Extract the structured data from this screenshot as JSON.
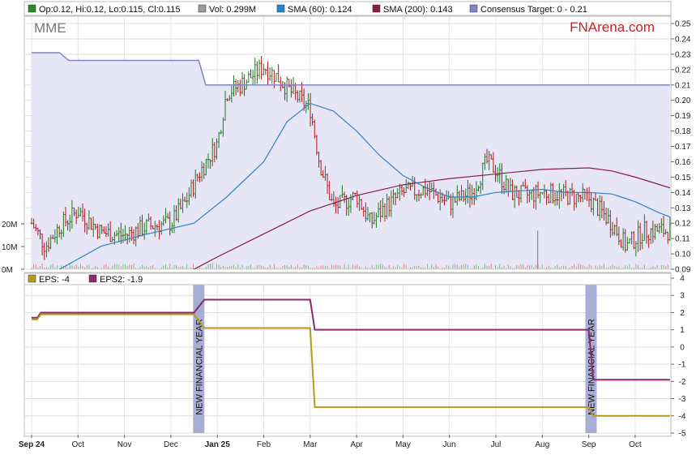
{
  "chart_data": [
    {
      "type": "candlestick",
      "ticker": "MME",
      "watermark": "FNArena.com",
      "legend": [
        {
          "label": "Op:0.12, Hi:0.12, Lo:0.115, Cl:0.115",
          "color": "#2a8a2a"
        },
        {
          "label": "Vol: 0.299M",
          "color": "#9a9a9a"
        },
        {
          "label": "SMA (60): 0.124",
          "color": "#2c84c6"
        },
        {
          "label": "SMA (200): 0.143",
          "color": "#8a1c45"
        },
        {
          "label": "Consensus Target: 0 - 0.21",
          "color": "#7f86c4"
        }
      ],
      "ylim": [
        0.09,
        0.25
      ],
      "y_ticks": [
        "0.09",
        "0.10",
        "0.11",
        "0.12",
        "0.13",
        "0.14",
        "0.15",
        "0.16",
        "0.17",
        "0.18",
        "0.19",
        "0.20",
        "0.21",
        "0.22",
        "0.23",
        "0.24",
        "0.25"
      ],
      "volume_ticks": [
        "0M",
        "10M",
        "20M"
      ],
      "x_ticks": [
        "Sep 24",
        "Oct",
        "Nov",
        "Dec",
        "Jan 25",
        "Feb",
        "Mar",
        "Apr",
        "May",
        "Jun",
        "Jul",
        "Aug",
        "Sep",
        "Oct"
      ],
      "consensus_target": [
        {
          "x": 0,
          "y": 0.231
        },
        {
          "x": 0.6,
          "y": 0.231
        },
        {
          "x": 0.8,
          "y": 0.226
        },
        {
          "x": 3.6,
          "y": 0.226
        },
        {
          "x": 3.75,
          "y": 0.21
        },
        {
          "x": 13.75,
          "y": 0.21
        }
      ],
      "sma200": [
        {
          "x": 0,
          "y": 0.02
        },
        {
          "x": 1,
          "y": 0.04
        },
        {
          "x": 2,
          "y": 0.062
        },
        {
          "x": 3,
          "y": 0.082
        },
        {
          "x": 4,
          "y": 0.098
        },
        {
          "x": 5,
          "y": 0.113
        },
        {
          "x": 6,
          "y": 0.128
        },
        {
          "x": 7,
          "y": 0.138
        },
        {
          "x": 8,
          "y": 0.145
        },
        {
          "x": 9,
          "y": 0.149
        },
        {
          "x": 10,
          "y": 0.152
        },
        {
          "x": 11,
          "y": 0.155
        },
        {
          "x": 12,
          "y": 0.156
        },
        {
          "x": 12.5,
          "y": 0.154
        },
        {
          "x": 13,
          "y": 0.15
        },
        {
          "x": 13.75,
          "y": 0.143
        }
      ],
      "sma60": [
        {
          "x": 0.6,
          "y": 0.09
        },
        {
          "x": 1.5,
          "y": 0.105
        },
        {
          "x": 2.5,
          "y": 0.113
        },
        {
          "x": 3.5,
          "y": 0.12
        },
        {
          "x": 4.2,
          "y": 0.137
        },
        {
          "x": 5,
          "y": 0.16
        },
        {
          "x": 5.5,
          "y": 0.186
        },
        {
          "x": 6,
          "y": 0.198
        },
        {
          "x": 6.5,
          "y": 0.193
        },
        {
          "x": 7,
          "y": 0.18
        },
        {
          "x": 7.5,
          "y": 0.164
        },
        {
          "x": 8,
          "y": 0.151
        },
        {
          "x": 8.5,
          "y": 0.143
        },
        {
          "x": 9,
          "y": 0.137
        },
        {
          "x": 9.5,
          "y": 0.137
        },
        {
          "x": 10,
          "y": 0.14
        },
        {
          "x": 10.5,
          "y": 0.141
        },
        {
          "x": 11,
          "y": 0.142
        },
        {
          "x": 11.5,
          "y": 0.14
        },
        {
          "x": 12,
          "y": 0.14
        },
        {
          "x": 12.5,
          "y": 0.139
        },
        {
          "x": 13,
          "y": 0.134
        },
        {
          "x": 13.5,
          "y": 0.127
        },
        {
          "x": 13.75,
          "y": 0.124
        }
      ],
      "price_close": [
        {
          "x": 0,
          "y": 0.12
        },
        {
          "x": 0.3,
          "y": 0.105
        },
        {
          "x": 0.6,
          "y": 0.118
        },
        {
          "x": 1,
          "y": 0.128
        },
        {
          "x": 1.5,
          "y": 0.114
        },
        {
          "x": 2,
          "y": 0.112
        },
        {
          "x": 2.5,
          "y": 0.118
        },
        {
          "x": 3,
          "y": 0.12
        },
        {
          "x": 3.3,
          "y": 0.133
        },
        {
          "x": 3.6,
          "y": 0.152
        },
        {
          "x": 4,
          "y": 0.172
        },
        {
          "x": 4.2,
          "y": 0.205
        },
        {
          "x": 4.5,
          "y": 0.21
        },
        {
          "x": 5,
          "y": 0.222
        },
        {
          "x": 5.3,
          "y": 0.215
        },
        {
          "x": 5.6,
          "y": 0.205
        },
        {
          "x": 6,
          "y": 0.195
        },
        {
          "x": 6.2,
          "y": 0.16
        },
        {
          "x": 6.5,
          "y": 0.13
        },
        {
          "x": 7,
          "y": 0.138
        },
        {
          "x": 7.3,
          "y": 0.12
        },
        {
          "x": 7.6,
          "y": 0.13
        },
        {
          "x": 8,
          "y": 0.14
        },
        {
          "x": 8.5,
          "y": 0.142
        },
        {
          "x": 9,
          "y": 0.133
        },
        {
          "x": 9.5,
          "y": 0.14
        },
        {
          "x": 9.8,
          "y": 0.16
        },
        {
          "x": 10,
          "y": 0.155
        },
        {
          "x": 10.3,
          "y": 0.14
        },
        {
          "x": 10.7,
          "y": 0.138
        },
        {
          "x": 11,
          "y": 0.14
        },
        {
          "x": 11.5,
          "y": 0.138
        },
        {
          "x": 12,
          "y": 0.136
        },
        {
          "x": 12.5,
          "y": 0.12
        },
        {
          "x": 12.8,
          "y": 0.105
        },
        {
          "x": 13.2,
          "y": 0.115
        },
        {
          "x": 13.75,
          "y": 0.115
        }
      ],
      "volume_spikes": [
        {
          "x": 10.9,
          "v": 17
        }
      ]
    },
    {
      "type": "line",
      "legend": [
        {
          "label": "EPS: -4",
          "color": "#b89a1a"
        },
        {
          "label": "EPS2: -1.9",
          "color": "#8a2a6a"
        }
      ],
      "ylim": [
        -5,
        4
      ],
      "y_ticks": [
        "-5",
        "-4",
        "-3",
        "-2",
        "-1",
        "0",
        "1",
        "2",
        "3",
        "4"
      ],
      "annotations": [
        {
          "text": "NEW FINANCIAL YEAR",
          "x": 3.6
        },
        {
          "text": "NEW FINANCIAL YEAR",
          "x": 12.05
        }
      ],
      "series": [
        {
          "name": "EPS",
          "color": "#b89a1a",
          "points": [
            {
              "x": 0,
              "y": 1.6
            },
            {
              "x": 0.12,
              "y": 1.6
            },
            {
              "x": 0.2,
              "y": 1.9
            },
            {
              "x": 3.5,
              "y": 1.9
            },
            {
              "x": 3.72,
              "y": 1.1
            },
            {
              "x": 6,
              "y": 1.1
            },
            {
              "x": 6.1,
              "y": -3.5
            },
            {
              "x": 12.0,
              "y": -3.5
            },
            {
              "x": 12.1,
              "y": -4
            },
            {
              "x": 13.75,
              "y": -4
            }
          ]
        },
        {
          "name": "EPS2",
          "color": "#8a2a6a",
          "points": [
            {
              "x": 0,
              "y": 1.7
            },
            {
              "x": 0.12,
              "y": 1.7
            },
            {
              "x": 0.2,
              "y": 2.0
            },
            {
              "x": 3.5,
              "y": 2.0
            },
            {
              "x": 3.72,
              "y": 2.75
            },
            {
              "x": 6,
              "y": 2.75
            },
            {
              "x": 6.1,
              "y": 1.0
            },
            {
              "x": 12.0,
              "y": 1.0
            },
            {
              "x": 12.1,
              "y": -1.9
            },
            {
              "x": 13.75,
              "y": -1.9
            }
          ]
        }
      ]
    }
  ]
}
